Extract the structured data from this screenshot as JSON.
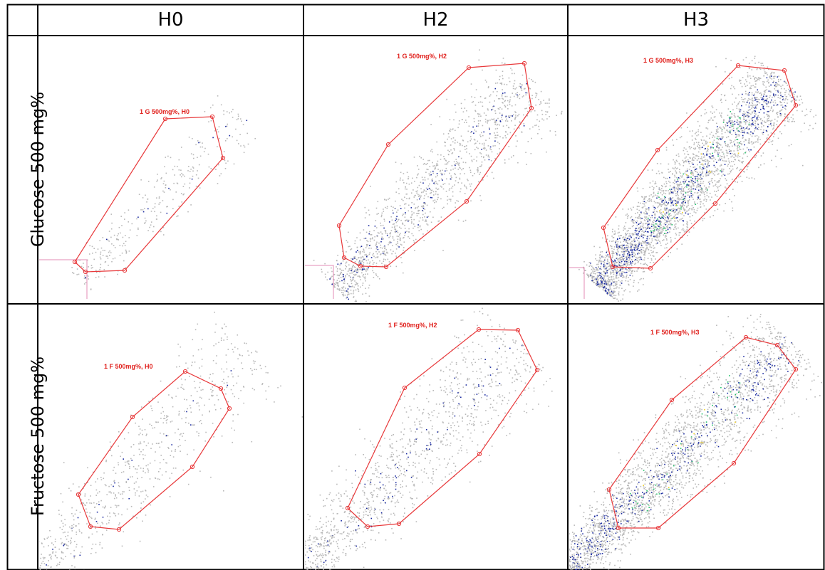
{
  "table": {
    "columns": [
      "H0",
      "H2",
      "H3"
    ],
    "rows": [
      "Glucose 500 mg%",
      "Fructose 500 mg%"
    ]
  },
  "panels": [
    {
      "id": "glucose-h0",
      "gate_label": "1 G 500mg%, H0",
      "density": "low"
    },
    {
      "id": "glucose-h2",
      "gate_label": "1 G 500mg%, H2",
      "density": "medium"
    },
    {
      "id": "glucose-h3",
      "gate_label": "1 G 500mg%, H3",
      "density": "high"
    },
    {
      "id": "fructose-h0",
      "gate_label": "1 F 500mg%, H0",
      "density": "low"
    },
    {
      "id": "fructose-h2",
      "gate_label": "1 F 500mg%, H2",
      "density": "medium"
    },
    {
      "id": "fructose-h3",
      "gate_label": "1 F 500mg%, H3",
      "density": "high"
    }
  ],
  "colors": {
    "gate": "#e8383a",
    "quadrant": "#e38bb5",
    "point_low": "#b8b8b8",
    "point_mid": "#1a2aa0",
    "point_high": "#22c26a",
    "point_peak": "#f2d01c"
  }
}
